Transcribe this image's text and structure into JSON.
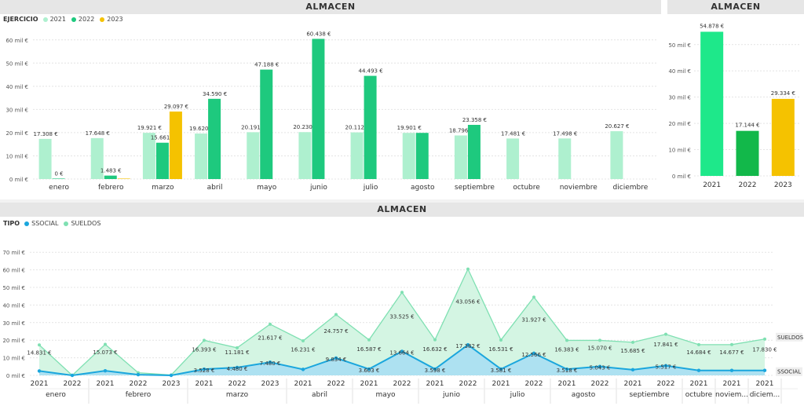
{
  "panels": {
    "top_left_title": "ALMACEN",
    "top_right_title": "ALMACEN",
    "bottom_title": "ALMACEN"
  },
  "legend_top": {
    "label": "EJERCICIO",
    "items": [
      {
        "name": "2021",
        "color": "#aef0cf"
      },
      {
        "name": "2022",
        "color": "#1ec97e"
      },
      {
        "name": "2023",
        "color": "#f5c200"
      }
    ]
  },
  "legend_bottom": {
    "label": "TIPO",
    "items": [
      {
        "name": "SSOCIAL",
        "color": "#1aa6dd"
      },
      {
        "name": "SUELDOS",
        "color": "#7fe0b2"
      }
    ]
  },
  "chart_data": [
    {
      "type": "bar",
      "title": "ALMACEN",
      "categories": [
        "enero",
        "febrero",
        "marzo",
        "abril",
        "mayo",
        "junio",
        "julio",
        "agosto",
        "septiembre",
        "octubre",
        "noviembre",
        "diciembre"
      ],
      "yticks": [
        "0 mil €",
        "10 mil €",
        "20 mil €",
        "30 mil €",
        "40 mil €",
        "50 mil €",
        "60 mil €"
      ],
      "ylim": [
        0,
        65
      ],
      "series": [
        {
          "name": "2021",
          "color": "#aef0cf",
          "values": [
            17.308,
            17.648,
            19.921,
            19.62,
            20.191,
            20.23,
            20.112,
            19.901,
            18.796,
            17.481,
            17.498,
            20.627
          ],
          "labels": [
            "17.308 €",
            "17.648 €",
            "19.921 €",
            "19.620 €",
            "20.191 €",
            "20.230 €",
            "20.112 €",
            "19.901 €",
            "18.796 €",
            "17.481 €",
            "17.498 €",
            "20.627 €"
          ]
        },
        {
          "name": "2022",
          "color": "#1ec97e",
          "values": [
            0,
            1.483,
            15.661,
            34.59,
            47.188,
            60.438,
            44.493,
            19.901,
            23.358,
            null,
            null,
            null
          ],
          "labels": [
            "0 €",
            "1.483 €",
            "15.661 €",
            "34.590 €",
            "47.188 €",
            "60.438 €",
            "44.493 €",
            "",
            "23.358 €",
            "",
            "",
            ""
          ]
        },
        {
          "name": "2023",
          "color": "#f5c200",
          "values": [
            null,
            0.2,
            29.097,
            null,
            null,
            null,
            null,
            null,
            null,
            null,
            null,
            null
          ],
          "labels": [
            "",
            "",
            "29.097 €",
            "",
            "",
            "",
            "",
            "",
            "",
            "",
            "",
            ""
          ]
        }
      ]
    },
    {
      "type": "bar",
      "title": "ALMACEN",
      "categories": [
        "2021",
        "2022",
        "2023"
      ],
      "values": [
        54.878,
        17.144,
        29.334
      ],
      "labels": [
        "54.878 €",
        "17.144 €",
        "29.334 €"
      ],
      "colors": [
        "#1ee88a",
        "#12b84a",
        "#f5c200"
      ],
      "yticks": [
        "0 mil €",
        "10 mil €",
        "20 mil €",
        "30 mil €",
        "40 mil €",
        "50 mil €"
      ],
      "ylim": [
        0,
        58
      ]
    },
    {
      "type": "area",
      "title": "ALMACEN",
      "yticks": [
        "0 mil €",
        "10 mil €",
        "20 mil €",
        "30 mil €",
        "40 mil €",
        "50 mil €",
        "60 mil €",
        "70 mil €"
      ],
      "ylim": [
        0,
        75
      ],
      "x": [
        {
          "year": "2021",
          "month": "enero"
        },
        {
          "year": "2022",
          "month": "enero"
        },
        {
          "year": "2021",
          "month": "febrero"
        },
        {
          "year": "2022",
          "month": "febrero"
        },
        {
          "year": "2023",
          "month": "febrero"
        },
        {
          "year": "2021",
          "month": "marzo"
        },
        {
          "year": "2022",
          "month": "marzo"
        },
        {
          "year": "2023",
          "month": "marzo"
        },
        {
          "year": "2021",
          "month": "abril"
        },
        {
          "year": "2022",
          "month": "abril"
        },
        {
          "year": "2021",
          "month": "mayo"
        },
        {
          "year": "2022",
          "month": "mayo"
        },
        {
          "year": "2021",
          "month": "junio"
        },
        {
          "year": "2022",
          "month": "junio"
        },
        {
          "year": "2021",
          "month": "julio"
        },
        {
          "year": "2022",
          "month": "julio"
        },
        {
          "year": "2021",
          "month": "agosto"
        },
        {
          "year": "2022",
          "month": "agosto"
        },
        {
          "year": "2021",
          "month": "septiembre"
        },
        {
          "year": "2022",
          "month": "septiembre"
        },
        {
          "year": "2021",
          "month": "octubre"
        },
        {
          "year": "2021",
          "month": "noviem..."
        },
        {
          "year": "2021",
          "month": "diciem..."
        }
      ],
      "month_groups": [
        {
          "label": "enero",
          "count": 2
        },
        {
          "label": "febrero",
          "count": 3
        },
        {
          "label": "marzo",
          "count": 3
        },
        {
          "label": "abril",
          "count": 2
        },
        {
          "label": "mayo",
          "count": 2
        },
        {
          "label": "junio",
          "count": 2
        },
        {
          "label": "julio",
          "count": 2
        },
        {
          "label": "agosto",
          "count": 2
        },
        {
          "label": "septiembre",
          "count": 2
        },
        {
          "label": "octubre",
          "count": 1
        },
        {
          "label": "noviem...",
          "count": 1
        },
        {
          "label": "diciem...",
          "count": 1
        }
      ],
      "series": [
        {
          "name": "SSOCIAL",
          "color": "#1aa6dd",
          "end_label": "SSOCIAL",
          "values": [
            2.5,
            0,
            2.6,
            0.4,
            0,
            3.528,
            4.48,
            7.48,
            3.4,
            9.834,
            3.603,
            13.664,
            3.598,
            17.382,
            3.581,
            12.566,
            3.518,
            5.043,
            3.2,
            5.517,
            2.8,
            2.8,
            2.8
          ],
          "labels": [
            "",
            "",
            "",
            "",
            "",
            "3.528 €",
            "4.480 €",
            "7.480 €",
            "",
            "9.834 €",
            "3.603 €",
            "13.664 €",
            "3.598 €",
            "17.382 €",
            "3.581 €",
            "12.566 €",
            "3.518 €",
            "5.043 €",
            "",
            "5.517 €",
            "",
            "",
            ""
          ]
        },
        {
          "name": "SUELDOS",
          "color": "#7fe0b2",
          "end_label": "SUELDOS",
          "values": [
            17.308,
            0,
            17.648,
            1.483,
            0.2,
            19.921,
            15.661,
            29.097,
            19.62,
            34.59,
            20.191,
            47.188,
            20.23,
            60.438,
            20.112,
            44.493,
            19.901,
            19.901,
            18.796,
            23.358,
            17.481,
            17.498,
            20.627
          ],
          "labels": [
            "14.831 €",
            "",
            "15.073 €",
            "",
            "",
            "16.393 €",
            "11.181 €",
            "21.617 €",
            "16.231 €",
            "24.757 €",
            "16.587 €",
            "33.525 €",
            "16.632 €",
            "43.056 €",
            "16.531 €",
            "31.927 €",
            "16.383 €",
            "15.070 €",
            "15.685 €",
            "17.841 €",
            "14.684 €",
            "14.677 €",
            "17.830 €"
          ]
        }
      ]
    }
  ]
}
